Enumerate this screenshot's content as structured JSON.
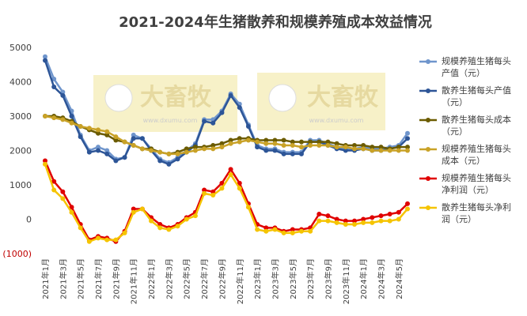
{
  "chart_data": {
    "type": "line",
    "title": "2021-2024年生猪散养和规模养殖成本效益情况",
    "watermark": [
      "大畜牧",
      "www.dxumu.com"
    ],
    "categories": [
      "2021年1月",
      null,
      "2021年3月",
      null,
      "2021年5月",
      null,
      "2021年7月",
      null,
      "2021年9月",
      null,
      "2021年11月",
      null,
      "2022年1月",
      null,
      "2022年3月",
      null,
      "2022年5月",
      null,
      "2022年7月",
      null,
      "2022年9月",
      null,
      "2022年11月",
      null,
      "2023年1月",
      null,
      "2023年3月",
      null,
      "2023年5月",
      null,
      "2023年7月",
      null,
      "2023年9月",
      null,
      "2023年11月",
      null,
      "2024年1月",
      null,
      "2024年3月",
      null,
      "2024年5月",
      null
    ],
    "ylim": [
      -1000,
      5000
    ],
    "yticks": [
      {
        "value": -1000,
        "label": "(1000)"
      },
      0,
      1000,
      2000,
      3000,
      4000,
      5000
    ],
    "negative_tick_color": "#c00000",
    "grid": false,
    "legend": "right",
    "series": [
      {
        "name": "规模养殖生猪每头产值（元）",
        "color": "#6f95cc",
        "values": [
          4730,
          4080,
          3700,
          3150,
          2450,
          2000,
          2100,
          2000,
          1750,
          1800,
          2450,
          2350,
          2050,
          1750,
          1650,
          1800,
          2000,
          2200,
          2900,
          2900,
          3150,
          3650,
          3350,
          2750,
          2150,
          2050,
          2050,
          1950,
          1950,
          1950,
          2300,
          2300,
          2200,
          2100,
          2050,
          2050,
          2100,
          2050,
          2050,
          2100,
          2150,
          2500
        ]
      },
      {
        "name": "散养生猪每头产值（元）",
        "color": "#2d5597",
        "values": [
          4620,
          3850,
          3600,
          3000,
          2400,
          1950,
          2000,
          1900,
          1700,
          1800,
          2350,
          2350,
          2000,
          1700,
          1600,
          1750,
          1950,
          2150,
          2850,
          2800,
          3100,
          3600,
          3250,
          2700,
          2100,
          2000,
          2000,
          1900,
          1900,
          1900,
          2250,
          2250,
          2150,
          2050,
          2000,
          2000,
          2050,
          2000,
          2000,
          2050,
          2100,
          2350
        ]
      },
      {
        "name": "散养生猪每头成本（元）",
        "color": "#6b5b00",
        "values": [
          3000,
          3000,
          2950,
          2850,
          2700,
          2600,
          2500,
          2450,
          2300,
          2250,
          2150,
          2050,
          2050,
          1950,
          1900,
          1950,
          2050,
          2100,
          2100,
          2150,
          2200,
          2300,
          2350,
          2350,
          2300,
          2300,
          2300,
          2300,
          2250,
          2250,
          2250,
          2250,
          2250,
          2200,
          2150,
          2150,
          2150,
          2100,
          2100,
          2050,
          2100,
          2100
        ]
      },
      {
        "name": "规模养殖生猪每头成本（元）",
        "color": "#c9a227",
        "values": [
          3000,
          2950,
          2900,
          2800,
          2700,
          2650,
          2600,
          2550,
          2400,
          2250,
          2150,
          2050,
          2000,
          1950,
          1900,
          1900,
          1950,
          2000,
          2050,
          2050,
          2100,
          2200,
          2250,
          2300,
          2250,
          2200,
          2200,
          2150,
          2150,
          2100,
          2150,
          2150,
          2150,
          2100,
          2100,
          2050,
          2050,
          2000,
          2000,
          2000,
          2000,
          2000
        ]
      },
      {
        "name": "规模养殖生猪每头净利润（元）",
        "color": "#e00000",
        "values": [
          1700,
          1100,
          800,
          350,
          -150,
          -600,
          -500,
          -550,
          -650,
          -350,
          300,
          300,
          50,
          -150,
          -250,
          -150,
          50,
          200,
          850,
          800,
          1050,
          1450,
          1050,
          450,
          -150,
          -250,
          -250,
          -350,
          -300,
          -300,
          -250,
          150,
          100,
          0,
          -50,
          -50,
          0,
          50,
          100,
          150,
          200,
          450
        ]
      },
      {
        "name": "散养生猪每头净利润（元）",
        "color": "#f5c400",
        "values": [
          1600,
          850,
          600,
          200,
          -250,
          -650,
          -550,
          -600,
          -600,
          -400,
          200,
          300,
          -50,
          -250,
          -300,
          -200,
          0,
          100,
          750,
          700,
          900,
          1300,
          900,
          350,
          -300,
          -350,
          -300,
          -400,
          -400,
          -350,
          -350,
          -50,
          -50,
          -100,
          -150,
          -150,
          -100,
          -100,
          -50,
          -50,
          0,
          300
        ]
      }
    ]
  }
}
